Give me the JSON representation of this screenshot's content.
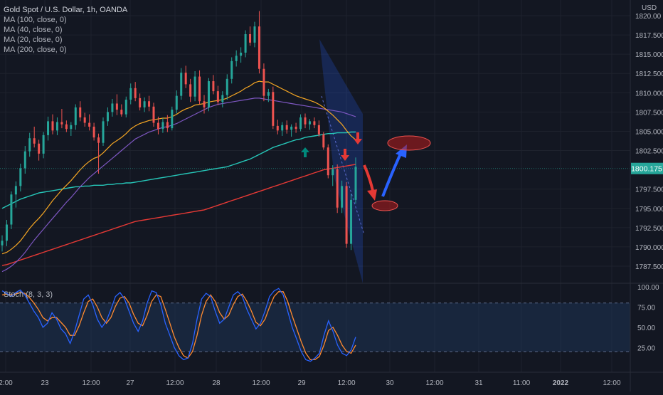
{
  "legend": {
    "title": "Gold Spot / U.S. Dollar, 1h, OANDA",
    "studies": [
      "MA (100, close, 0)",
      "MA (40, close, 0)",
      "MA (20, close, 0)",
      "MA (200, close, 0)"
    ]
  },
  "stoch_label": "Stoch (8, 3, 3)",
  "currency": "USD",
  "colors": {
    "background": "#131722",
    "up": "#26a69a",
    "down": "#ef5350",
    "ma100": "#26c6b8",
    "ma40": "#7e57c2",
    "ma20": "#f5a623",
    "ma200": "#e53935",
    "stoch_k": "#2962ff",
    "stoch_d": "#ff8a30"
  },
  "chart_data": [
    {
      "type": "candlestick",
      "title": "Gold Spot / U.S. Dollar, 1h, OANDA",
      "ylabel": "USD",
      "ylim": [
        1785,
        1821
      ],
      "price_ticks": [
        "1820.00",
        "1817.500",
        "1815.000",
        "1812.500",
        "1810.000",
        "1807.500",
        "1805.000",
        "1802.500",
        "1797.500",
        "1795.000",
        "1792.500",
        "1790.000",
        "1787.500"
      ],
      "current_price": "1800.175",
      "x_ticks": [
        "2:00",
        "23",
        "12:00",
        "27",
        "12:00",
        "28",
        "12:00",
        "29",
        "12:00",
        "30",
        "12:00",
        "31",
        "11:00",
        "2022",
        "12:00"
      ],
      "candles": [
        [
          1790.2,
          1791.5,
          1789.4,
          1790.8
        ],
        [
          1790.8,
          1793.5,
          1790.1,
          1792.9
        ],
        [
          1792.9,
          1797.2,
          1792.3,
          1796.8
        ],
        [
          1796.8,
          1798.5,
          1795.1,
          1797.9
        ],
        [
          1797.9,
          1800.8,
          1797.2,
          1800.2
        ],
        [
          1800.2,
          1803.1,
          1799.5,
          1802.4
        ],
        [
          1802.4,
          1804.8,
          1801.7,
          1804.1
        ],
        [
          1804.1,
          1805.6,
          1802.9,
          1803.4
        ],
        [
          1803.4,
          1803.9,
          1801.2,
          1802.1
        ],
        [
          1802.1,
          1804.9,
          1801.5,
          1804.5
        ],
        [
          1804.5,
          1806.9,
          1803.8,
          1806.3
        ],
        [
          1806.3,
          1807.2,
          1804.6,
          1805.1
        ],
        [
          1805.1,
          1806.8,
          1804.5,
          1806.2
        ],
        [
          1806.2,
          1807.9,
          1805.4,
          1805.9
        ],
        [
          1805.9,
          1806.4,
          1804.9,
          1805.3
        ],
        [
          1805.3,
          1806.2,
          1804.4,
          1805.8
        ],
        [
          1805.8,
          1808.5,
          1805.2,
          1808.1
        ],
        [
          1808.1,
          1808.9,
          1806.3,
          1806.8
        ],
        [
          1806.8,
          1807.4,
          1805.6,
          1806.1
        ],
        [
          1806.1,
          1807.2,
          1805.1,
          1805.6
        ],
        [
          1805.6,
          1806.1,
          1803.8,
          1804.2
        ],
        [
          1804.2,
          1804.7,
          1799.5,
          1803.5
        ],
        [
          1803.5,
          1806.8,
          1803.1,
          1806.3
        ],
        [
          1806.3,
          1808.1,
          1805.7,
          1807.5
        ],
        [
          1807.5,
          1809.2,
          1806.9,
          1808.6
        ],
        [
          1808.6,
          1809.8,
          1807.1,
          1807.8
        ],
        [
          1807.8,
          1808.5,
          1806.9,
          1807.2
        ],
        [
          1807.2,
          1809.5,
          1806.8,
          1809.1
        ],
        [
          1809.1,
          1811.2,
          1808.5,
          1810.6
        ],
        [
          1810.6,
          1811.4,
          1808.9,
          1809.3
        ],
        [
          1809.3,
          1809.9,
          1807.7,
          1808.1
        ],
        [
          1808.1,
          1809.4,
          1807.5,
          1808.9
        ],
        [
          1808.9,
          1809.6,
          1807.6,
          1808.2
        ],
        [
          1808.2,
          1808.7,
          1805.6,
          1806.1
        ],
        [
          1806.1,
          1806.9,
          1804.6,
          1805.3
        ],
        [
          1805.3,
          1806.7,
          1804.8,
          1806.2
        ],
        [
          1806.2,
          1807.1,
          1804.9,
          1805.4
        ],
        [
          1805.4,
          1808.2,
          1805.1,
          1807.8
        ],
        [
          1807.8,
          1810.3,
          1807.3,
          1809.6
        ],
        [
          1809.6,
          1813.2,
          1809.1,
          1812.6
        ],
        [
          1812.6,
          1813.5,
          1810.6,
          1811.1
        ],
        [
          1811.1,
          1811.8,
          1808.8,
          1809.5
        ],
        [
          1809.5,
          1812.8,
          1808.9,
          1812.1
        ],
        [
          1812.1,
          1812.9,
          1808.5,
          1808.9
        ],
        [
          1808.9,
          1809.7,
          1807.3,
          1808.1
        ],
        [
          1808.1,
          1811.9,
          1807.6,
          1811.5
        ],
        [
          1811.5,
          1812.3,
          1809.8,
          1810.2
        ],
        [
          1810.2,
          1810.9,
          1808.4,
          1808.8
        ],
        [
          1808.8,
          1810.2,
          1808.1,
          1809.7
        ],
        [
          1809.7,
          1812.4,
          1809.1,
          1811.8
        ],
        [
          1811.8,
          1814.6,
          1811.2,
          1814.1
        ],
        [
          1814.1,
          1815.5,
          1813.4,
          1814.8
        ],
        [
          1814.8,
          1815.9,
          1813.9,
          1815.2
        ],
        [
          1815.2,
          1818.1,
          1814.6,
          1817.6
        ],
        [
          1817.6,
          1818.6,
          1816.1,
          1816.5
        ],
        [
          1816.5,
          1819.2,
          1815.9,
          1818.6
        ],
        [
          1818.6,
          1820.6,
          1812.5,
          1813.1
        ],
        [
          1813.1,
          1813.8,
          1808.9,
          1809.6
        ],
        [
          1809.6,
          1810.5,
          1808.8,
          1810.1
        ],
        [
          1810.1,
          1810.8,
          1805.3,
          1805.7
        ],
        [
          1805.7,
          1806.5,
          1804.6,
          1805.1
        ],
        [
          1805.1,
          1806.2,
          1804.4,
          1805.8
        ],
        [
          1805.8,
          1806.4,
          1804.7,
          1805.2
        ],
        [
          1805.2,
          1805.9,
          1804.3,
          1805.6
        ],
        [
          1805.6,
          1806.1,
          1804.8,
          1805.3
        ],
        [
          1805.3,
          1807.2,
          1805.0,
          1806.8
        ],
        [
          1806.8,
          1807.3,
          1805.4,
          1805.9
        ],
        [
          1805.9,
          1806.6,
          1805.2,
          1806.3
        ],
        [
          1806.3,
          1806.8,
          1805.4,
          1805.8
        ],
        [
          1805.8,
          1806.4,
          1804.3,
          1804.6
        ],
        [
          1804.6,
          1804.9,
          1802.6,
          1802.9
        ],
        [
          1802.9,
          1803.3,
          1798.9,
          1799.3
        ],
        [
          1799.3,
          1800.6,
          1797.9,
          1800.1
        ],
        [
          1800.1,
          1800.7,
          1794.4,
          1795.1
        ],
        [
          1795.1,
          1798.6,
          1794.4,
          1797.9
        ],
        [
          1797.9,
          1798.4,
          1789.9,
          1790.4
        ],
        [
          1790.4,
          1796.9,
          1789.6,
          1796.1
        ],
        [
          1796.1,
          1801.6,
          1795.6,
          1800.4
        ]
      ],
      "ma20": [
        1789.1,
        1789.3,
        1789.7,
        1790.2,
        1790.8,
        1791.6,
        1792.4,
        1793.1,
        1793.7,
        1794.4,
        1795.2,
        1796.0,
        1796.7,
        1797.4,
        1798.0,
        1798.6,
        1799.3,
        1800.0,
        1800.6,
        1801.1,
        1801.5,
        1801.7,
        1802.2,
        1802.8,
        1803.4,
        1803.8,
        1804.2,
        1804.7,
        1805.3,
        1805.7,
        1806.0,
        1806.2,
        1806.4,
        1806.5,
        1806.6,
        1806.7,
        1806.7,
        1806.9,
        1807.2,
        1807.6,
        1807.9,
        1808.1,
        1808.4,
        1808.5,
        1808.6,
        1808.8,
        1808.9,
        1809.0,
        1809.1,
        1809.3,
        1809.6,
        1809.9,
        1810.2,
        1810.6,
        1810.9,
        1811.3,
        1811.5,
        1811.4,
        1811.4,
        1811.1,
        1810.8,
        1810.5,
        1810.2,
        1809.9,
        1809.6,
        1809.4,
        1809.2,
        1809.0,
        1808.8,
        1808.5,
        1808.1,
        1807.6,
        1807.1,
        1806.5,
        1805.9,
        1805.1,
        1804.4,
        1803.9
      ],
      "ma40": [
        1786.8,
        1787.1,
        1787.5,
        1788.0,
        1788.6,
        1789.3,
        1790.1,
        1790.9,
        1791.6,
        1792.3,
        1793.0,
        1793.7,
        1794.4,
        1795.1,
        1795.8,
        1796.4,
        1797.1,
        1797.8,
        1798.4,
        1799.0,
        1799.5,
        1800.0,
        1800.5,
        1801.0,
        1801.5,
        1802.0,
        1802.5,
        1803.0,
        1803.5,
        1804.0,
        1804.3,
        1804.6,
        1804.9,
        1805.1,
        1805.3,
        1805.5,
        1805.6,
        1805.8,
        1806.0,
        1806.3,
        1806.6,
        1806.9,
        1807.2,
        1807.5,
        1807.8,
        1808.1,
        1808.3,
        1808.5,
        1808.6,
        1808.7,
        1808.8,
        1808.9,
        1809.0,
        1809.1,
        1809.2,
        1809.3,
        1809.3,
        1809.2,
        1809.1,
        1809.0,
        1808.9,
        1808.8,
        1808.7,
        1808.6,
        1808.5,
        1808.4,
        1808.3,
        1808.2,
        1808.1,
        1808.0,
        1807.9,
        1807.8,
        1807.7,
        1807.6,
        1807.5,
        1807.3,
        1807.1,
        1806.9
      ],
      "ma100": [
        1795.0,
        1795.3,
        1795.6,
        1795.9,
        1796.2,
        1796.4,
        1796.6,
        1796.8,
        1797.0,
        1797.1,
        1797.2,
        1797.3,
        1797.4,
        1797.5,
        1797.6,
        1797.7,
        1797.8,
        1797.8,
        1797.9,
        1797.9,
        1798.0,
        1798.0,
        1798.0,
        1798.1,
        1798.1,
        1798.2,
        1798.2,
        1798.3,
        1798.3,
        1798.4,
        1798.5,
        1798.6,
        1798.7,
        1798.8,
        1798.9,
        1799.0,
        1799.1,
        1799.2,
        1799.3,
        1799.4,
        1799.5,
        1799.6,
        1799.7,
        1799.8,
        1799.9,
        1800.0,
        1800.1,
        1800.2,
        1800.3,
        1800.4,
        1800.6,
        1800.8,
        1801.0,
        1801.2,
        1801.4,
        1801.7,
        1802.0,
        1802.3,
        1802.6,
        1802.9,
        1803.1,
        1803.3,
        1803.5,
        1803.7,
        1803.9,
        1804.0,
        1804.2,
        1804.3,
        1804.4,
        1804.5,
        1804.6,
        1804.7,
        1804.7,
        1804.8,
        1804.8,
        1804.8,
        1804.9,
        1804.9
      ],
      "ma200": [
        1787.6,
        1787.7,
        1787.9,
        1788.1,
        1788.3,
        1788.5,
        1788.7,
        1788.9,
        1789.1,
        1789.3,
        1789.5,
        1789.7,
        1789.9,
        1790.1,
        1790.3,
        1790.5,
        1790.7,
        1790.9,
        1791.1,
        1791.3,
        1791.5,
        1791.7,
        1791.9,
        1792.1,
        1792.3,
        1792.5,
        1792.7,
        1792.9,
        1793.1,
        1793.3,
        1793.4,
        1793.5,
        1793.6,
        1793.7,
        1793.8,
        1793.9,
        1794.0,
        1794.1,
        1794.2,
        1794.3,
        1794.4,
        1794.5,
        1794.6,
        1794.7,
        1794.8,
        1795.0,
        1795.2,
        1795.4,
        1795.6,
        1795.8,
        1796.0,
        1796.2,
        1796.4,
        1796.6,
        1796.8,
        1797.0,
        1797.2,
        1797.4,
        1797.6,
        1797.8,
        1798.0,
        1798.2,
        1798.4,
        1798.6,
        1798.8,
        1799.0,
        1799.2,
        1799.4,
        1799.6,
        1799.8,
        1800.0,
        1800.1,
        1800.2,
        1800.3,
        1800.4,
        1800.5,
        1800.6,
        1800.7
      ]
    },
    {
      "type": "line",
      "title": "Stoch (8, 3, 3)",
      "ylim": [
        0,
        100
      ],
      "y_ticks": [
        "100.00",
        "75.00",
        "50.00",
        "25.00"
      ],
      "bands": [
        20,
        80
      ],
      "series": [
        {
          "name": "%K",
          "values": [
            95,
            92,
            88,
            93,
            96,
            90,
            80,
            70,
            62,
            50,
            55,
            68,
            60,
            48,
            42,
            30,
            45,
            65,
            85,
            90,
            78,
            60,
            50,
            58,
            72,
            88,
            93,
            85,
            70,
            55,
            45,
            58,
            80,
            95,
            93,
            78,
            55,
            40,
            25,
            15,
            10,
            12,
            30,
            60,
            85,
            92,
            88,
            70,
            55,
            60,
            75,
            90,
            94,
            88,
            72,
            60,
            48,
            55,
            70,
            88,
            95,
            98,
            90,
            70,
            50,
            35,
            20,
            10,
            8,
            12,
            18,
            40,
            58,
            45,
            28,
            18,
            15,
            22,
            38
          ]
        },
        {
          "name": "%D",
          "values": [
            90,
            91,
            90,
            91,
            93,
            92,
            87,
            80,
            72,
            62,
            58,
            62,
            62,
            56,
            50,
            40,
            40,
            52,
            68,
            82,
            85,
            75,
            62,
            55,
            62,
            76,
            86,
            88,
            80,
            66,
            55,
            52,
            65,
            82,
            90,
            88,
            72,
            55,
            38,
            25,
            15,
            12,
            20,
            40,
            65,
            82,
            90,
            82,
            68,
            60,
            65,
            78,
            88,
            91,
            82,
            70,
            56,
            52,
            60,
            75,
            88,
            94,
            94,
            82,
            64,
            48,
            32,
            18,
            10,
            10,
            14,
            28,
            46,
            50,
            40,
            28,
            20,
            18,
            28
          ]
        }
      ]
    }
  ],
  "annotations": [
    "up-arrow-teal",
    "down-arrow-red",
    "down-arrow-red",
    "curved-arrow-red",
    "curved-arrow-blue",
    "target-ellipse-low",
    "target-ellipse-high",
    "channel-polygon"
  ]
}
